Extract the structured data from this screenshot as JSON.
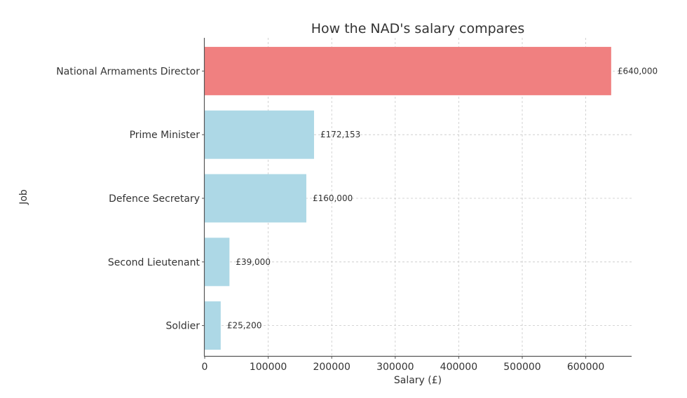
{
  "chart_data": {
    "type": "bar",
    "orientation": "horizontal",
    "title": "How the NAD's salary compares",
    "xlabel": "Salary (£)",
    "ylabel": "Job",
    "categories": [
      "National Armaments Director",
      "Prime Minister",
      "Defence Secretary",
      "Second Lieutenant",
      "Soldier"
    ],
    "values": [
      640000,
      172153,
      160000,
      39000,
      25200
    ],
    "value_labels": [
      "£640,000",
      "£172,153",
      "£160,000",
      "£39,000",
      "£25,200"
    ],
    "bar_colors": [
      "#f08080",
      "#add8e6",
      "#add8e6",
      "#add8e6",
      "#add8e6"
    ],
    "xlim": [
      0,
      672000
    ],
    "xticks": [
      0,
      100000,
      200000,
      300000,
      400000,
      500000,
      600000
    ],
    "xtick_labels": [
      "0",
      "100000",
      "200000",
      "300000",
      "400000",
      "500000",
      "600000"
    ],
    "grid": true,
    "grid_style": "dashed"
  },
  "title": "How the NAD's salary compares",
  "xlabel": "Salary (£)",
  "ylabel": "Job"
}
